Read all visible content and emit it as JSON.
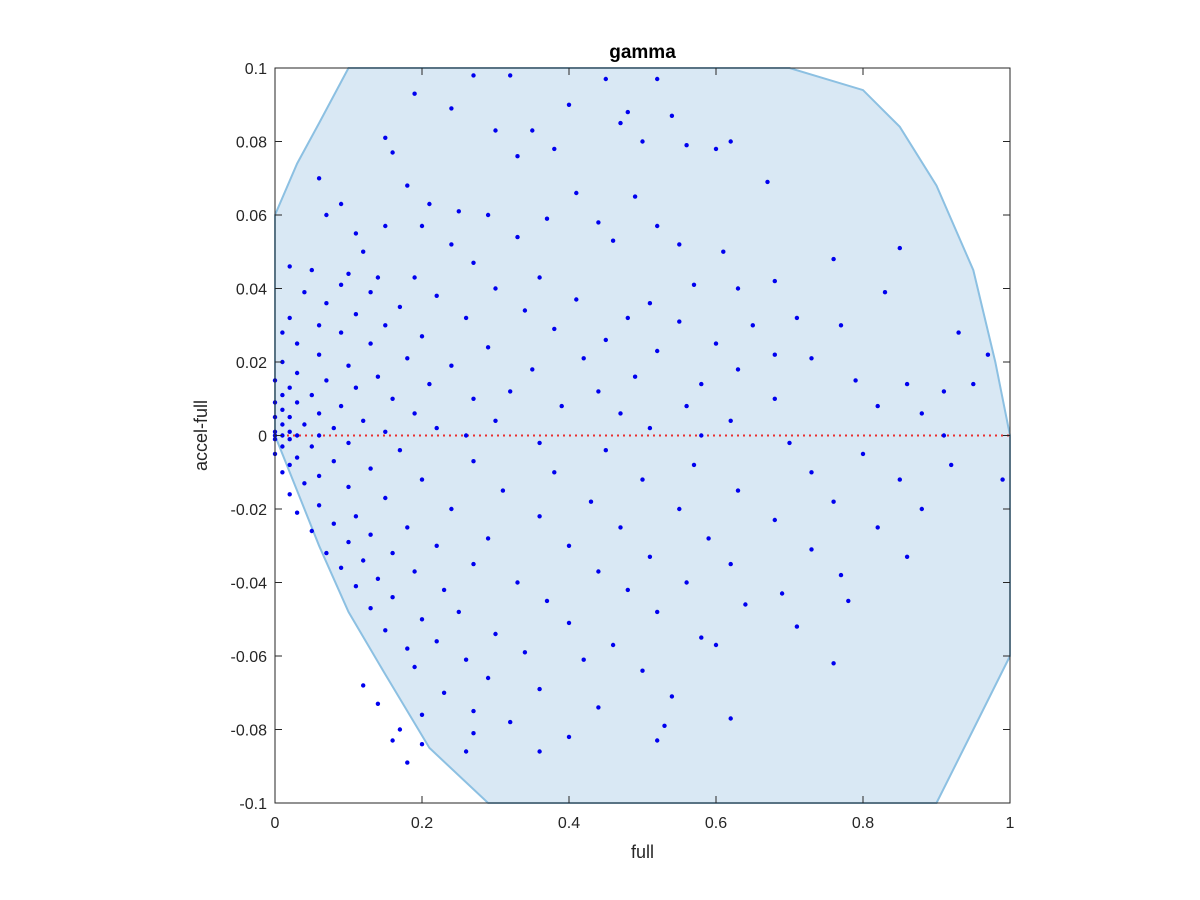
{
  "chart_data": {
    "type": "scatter",
    "title": "gamma",
    "xlabel": "full",
    "ylabel": "accel-full",
    "xlim": [
      0,
      1
    ],
    "ylim": [
      -0.1,
      0.1
    ],
    "x_ticks": [
      0,
      0.2,
      0.4,
      0.6,
      0.8,
      1
    ],
    "x_tick_labels": [
      "0",
      "0.2",
      "0.4",
      "0.6",
      "0.8",
      "1"
    ],
    "y_ticks": [
      -0.1,
      -0.08,
      -0.06,
      -0.04,
      -0.02,
      0,
      0.02,
      0.04,
      0.06,
      0.08,
      0.1
    ],
    "y_tick_labels": [
      "-0.1",
      "-0.08",
      "-0.06",
      "-0.04",
      "-0.02",
      "0",
      "0.02",
      "0.04",
      "0.06",
      "0.08",
      "0.1"
    ],
    "grid": false,
    "colors": {
      "points": "#0000ee",
      "region_fill": "#d9e8f4",
      "region_edge": "#8cc0e2",
      "zero_line": "#e83030",
      "axes": "#262626"
    },
    "zero_line": {
      "y": 0,
      "style": "dotted"
    },
    "region_boundary": [
      {
        "x": 0.0,
        "y": 0.06
      },
      {
        "x": 0.03,
        "y": 0.074
      },
      {
        "x": 0.06,
        "y": 0.085
      },
      {
        "x": 0.1,
        "y": 0.1
      },
      {
        "x": 0.7,
        "y": 0.1
      },
      {
        "x": 0.8,
        "y": 0.094
      },
      {
        "x": 0.85,
        "y": 0.084
      },
      {
        "x": 0.9,
        "y": 0.068
      },
      {
        "x": 0.95,
        "y": 0.045
      },
      {
        "x": 0.98,
        "y": 0.02
      },
      {
        "x": 1.0,
        "y": 0.0
      },
      {
        "x": 1.0,
        "y": -0.06
      },
      {
        "x": 0.95,
        "y": -0.08
      },
      {
        "x": 0.9,
        "y": -0.1
      },
      {
        "x": 0.29,
        "y": -0.1
      },
      {
        "x": 0.21,
        "y": -0.085
      },
      {
        "x": 0.15,
        "y": -0.065
      },
      {
        "x": 0.1,
        "y": -0.048
      },
      {
        "x": 0.06,
        "y": -0.03
      },
      {
        "x": 0.03,
        "y": -0.015
      },
      {
        "x": 0.0,
        "y": 0.0
      }
    ],
    "series": [
      {
        "points": [
          [
            0.27,
            0.098
          ],
          [
            0.32,
            0.098
          ],
          [
            0.45,
            0.097
          ],
          [
            0.52,
            0.097
          ],
          [
            0.19,
            0.093
          ],
          [
            0.24,
            0.089
          ],
          [
            0.4,
            0.09
          ],
          [
            0.48,
            0.088
          ],
          [
            0.54,
            0.087
          ],
          [
            0.3,
            0.083
          ],
          [
            0.35,
            0.083
          ],
          [
            0.38,
            0.078
          ],
          [
            0.15,
            0.081
          ],
          [
            0.16,
            0.077
          ],
          [
            0.33,
            0.076
          ],
          [
            0.47,
            0.085
          ],
          [
            0.5,
            0.08
          ],
          [
            0.56,
            0.079
          ],
          [
            0.6,
            0.078
          ],
          [
            0.62,
            0.08
          ],
          [
            0.06,
            0.07
          ],
          [
            0.67,
            0.069
          ],
          [
            0.18,
            0.068
          ],
          [
            0.41,
            0.066
          ],
          [
            0.49,
            0.065
          ],
          [
            0.21,
            0.063
          ],
          [
            0.09,
            0.063
          ],
          [
            0.25,
            0.061
          ],
          [
            0.29,
            0.06
          ],
          [
            0.37,
            0.059
          ],
          [
            0.07,
            0.06
          ],
          [
            0.44,
            0.058
          ],
          [
            0.15,
            0.057
          ],
          [
            0.2,
            0.057
          ],
          [
            0.52,
            0.057
          ],
          [
            0.11,
            0.055
          ],
          [
            0.33,
            0.054
          ],
          [
            0.46,
            0.053
          ],
          [
            0.55,
            0.052
          ],
          [
            0.24,
            0.052
          ],
          [
            0.61,
            0.05
          ],
          [
            0.85,
            0.051
          ],
          [
            0.12,
            0.05
          ],
          [
            0.76,
            0.048
          ],
          [
            0.27,
            0.047
          ],
          [
            0.02,
            0.046
          ],
          [
            0.05,
            0.045
          ],
          [
            0.1,
            0.044
          ],
          [
            0.14,
            0.043
          ],
          [
            0.19,
            0.043
          ],
          [
            0.36,
            0.043
          ],
          [
            0.57,
            0.041
          ],
          [
            0.68,
            0.042
          ],
          [
            0.09,
            0.041
          ],
          [
            0.3,
            0.04
          ],
          [
            0.63,
            0.04
          ],
          [
            0.83,
            0.039
          ],
          [
            0.04,
            0.039
          ],
          [
            0.13,
            0.039
          ],
          [
            0.22,
            0.038
          ],
          [
            0.41,
            0.037
          ],
          [
            0.51,
            0.036
          ],
          [
            0.07,
            0.036
          ],
          [
            0.17,
            0.035
          ],
          [
            0.34,
            0.034
          ],
          [
            0.48,
            0.032
          ],
          [
            0.71,
            0.032
          ],
          [
            0.02,
            0.032
          ],
          [
            0.11,
            0.033
          ],
          [
            0.26,
            0.032
          ],
          [
            0.55,
            0.031
          ],
          [
            0.65,
            0.03
          ],
          [
            0.77,
            0.03
          ],
          [
            0.06,
            0.03
          ],
          [
            0.15,
            0.03
          ],
          [
            0.38,
            0.029
          ],
          [
            0.93,
            0.028
          ],
          [
            0.01,
            0.028
          ],
          [
            0.09,
            0.028
          ],
          [
            0.2,
            0.027
          ],
          [
            0.45,
            0.026
          ],
          [
            0.6,
            0.025
          ],
          [
            0.03,
            0.025
          ],
          [
            0.13,
            0.025
          ],
          [
            0.29,
            0.024
          ],
          [
            0.52,
            0.023
          ],
          [
            0.68,
            0.022
          ],
          [
            0.97,
            0.022
          ],
          [
            0.06,
            0.022
          ],
          [
            0.18,
            0.021
          ],
          [
            0.42,
            0.021
          ],
          [
            0.73,
            0.021
          ],
          [
            0.01,
            0.02
          ],
          [
            0.1,
            0.019
          ],
          [
            0.24,
            0.019
          ],
          [
            0.35,
            0.018
          ],
          [
            0.63,
            0.018
          ],
          [
            0.03,
            0.017
          ],
          [
            0.14,
            0.016
          ],
          [
            0.49,
            0.016
          ],
          [
            0.79,
            0.015
          ],
          [
            0.0,
            0.015
          ],
          [
            0.07,
            0.015
          ],
          [
            0.21,
            0.014
          ],
          [
            0.58,
            0.014
          ],
          [
            0.86,
            0.014
          ],
          [
            0.95,
            0.014
          ],
          [
            0.02,
            0.013
          ],
          [
            0.11,
            0.013
          ],
          [
            0.32,
            0.012
          ],
          [
            0.44,
            0.012
          ],
          [
            0.91,
            0.012
          ],
          [
            0.01,
            0.011
          ],
          [
            0.05,
            0.011
          ],
          [
            0.16,
            0.01
          ],
          [
            0.27,
            0.01
          ],
          [
            0.68,
            0.01
          ],
          [
            0.0,
            0.009
          ],
          [
            0.03,
            0.009
          ],
          [
            0.09,
            0.008
          ],
          [
            0.39,
            0.008
          ],
          [
            0.56,
            0.008
          ],
          [
            0.82,
            0.008
          ],
          [
            0.01,
            0.007
          ],
          [
            0.06,
            0.006
          ],
          [
            0.19,
            0.006
          ],
          [
            0.47,
            0.006
          ],
          [
            0.88,
            0.006
          ],
          [
            0.0,
            0.005
          ],
          [
            0.02,
            0.005
          ],
          [
            0.12,
            0.004
          ],
          [
            0.3,
            0.004
          ],
          [
            0.62,
            0.004
          ],
          [
            0.01,
            0.003
          ],
          [
            0.04,
            0.003
          ],
          [
            0.08,
            0.002
          ],
          [
            0.22,
            0.002
          ],
          [
            0.51,
            0.002
          ],
          [
            0.0,
            0.001
          ],
          [
            0.02,
            0.001
          ],
          [
            0.15,
            0.001
          ],
          [
            0.0,
            0.0
          ],
          [
            0.01,
            0.0
          ],
          [
            0.03,
            0.0
          ],
          [
            0.06,
            0.0
          ],
          [
            0.26,
            0.0
          ],
          [
            0.58,
            0.0
          ],
          [
            0.91,
            0.0
          ],
          [
            0.0,
            -0.001
          ],
          [
            0.02,
            -0.001
          ],
          [
            0.1,
            -0.002
          ],
          [
            0.36,
            -0.002
          ],
          [
            0.7,
            -0.002
          ],
          [
            0.01,
            -0.003
          ],
          [
            0.05,
            -0.003
          ],
          [
            0.17,
            -0.004
          ],
          [
            0.45,
            -0.004
          ],
          [
            0.8,
            -0.005
          ],
          [
            0.0,
            -0.005
          ],
          [
            0.03,
            -0.006
          ],
          [
            0.08,
            -0.007
          ],
          [
            0.27,
            -0.007
          ],
          [
            0.57,
            -0.008
          ],
          [
            0.92,
            -0.008
          ],
          [
            0.02,
            -0.008
          ],
          [
            0.13,
            -0.009
          ],
          [
            0.38,
            -0.01
          ],
          [
            0.73,
            -0.01
          ],
          [
            0.01,
            -0.01
          ],
          [
            0.06,
            -0.011
          ],
          [
            0.2,
            -0.012
          ],
          [
            0.5,
            -0.012
          ],
          [
            0.85,
            -0.012
          ],
          [
            0.04,
            -0.013
          ],
          [
            0.1,
            -0.014
          ],
          [
            0.31,
            -0.015
          ],
          [
            0.63,
            -0.015
          ],
          [
            0.99,
            -0.012
          ],
          [
            0.02,
            -0.016
          ],
          [
            0.15,
            -0.017
          ],
          [
            0.43,
            -0.018
          ],
          [
            0.76,
            -0.018
          ],
          [
            0.06,
            -0.019
          ],
          [
            0.24,
            -0.02
          ],
          [
            0.55,
            -0.02
          ],
          [
            0.88,
            -0.02
          ],
          [
            0.03,
            -0.021
          ],
          [
            0.11,
            -0.022
          ],
          [
            0.36,
            -0.022
          ],
          [
            0.68,
            -0.023
          ],
          [
            0.08,
            -0.024
          ],
          [
            0.18,
            -0.025
          ],
          [
            0.47,
            -0.025
          ],
          [
            0.82,
            -0.025
          ],
          [
            0.05,
            -0.026
          ],
          [
            0.13,
            -0.027
          ],
          [
            0.29,
            -0.028
          ],
          [
            0.59,
            -0.028
          ],
          [
            0.1,
            -0.029
          ],
          [
            0.22,
            -0.03
          ],
          [
            0.4,
            -0.03
          ],
          [
            0.73,
            -0.031
          ],
          [
            0.07,
            -0.032
          ],
          [
            0.16,
            -0.032
          ],
          [
            0.51,
            -0.033
          ],
          [
            0.86,
            -0.033
          ],
          [
            0.12,
            -0.034
          ],
          [
            0.27,
            -0.035
          ],
          [
            0.62,
            -0.035
          ],
          [
            0.09,
            -0.036
          ],
          [
            0.19,
            -0.037
          ],
          [
            0.44,
            -0.037
          ],
          [
            0.77,
            -0.038
          ],
          [
            0.14,
            -0.039
          ],
          [
            0.33,
            -0.04
          ],
          [
            0.56,
            -0.04
          ],
          [
            0.11,
            -0.041
          ],
          [
            0.23,
            -0.042
          ],
          [
            0.48,
            -0.042
          ],
          [
            0.69,
            -0.043
          ],
          [
            0.16,
            -0.044
          ],
          [
            0.37,
            -0.045
          ],
          [
            0.64,
            -0.046
          ],
          [
            0.78,
            -0.045
          ],
          [
            0.13,
            -0.047
          ],
          [
            0.25,
            -0.048
          ],
          [
            0.52,
            -0.048
          ],
          [
            0.2,
            -0.05
          ],
          [
            0.4,
            -0.051
          ],
          [
            0.71,
            -0.052
          ],
          [
            0.15,
            -0.053
          ],
          [
            0.3,
            -0.054
          ],
          [
            0.58,
            -0.055
          ],
          [
            0.22,
            -0.056
          ],
          [
            0.46,
            -0.057
          ],
          [
            0.18,
            -0.058
          ],
          [
            0.34,
            -0.059
          ],
          [
            0.6,
            -0.057
          ],
          [
            0.26,
            -0.061
          ],
          [
            0.42,
            -0.061
          ],
          [
            0.76,
            -0.062
          ],
          [
            0.19,
            -0.063
          ],
          [
            0.5,
            -0.064
          ],
          [
            0.29,
            -0.066
          ],
          [
            0.12,
            -0.068
          ],
          [
            0.36,
            -0.069
          ],
          [
            0.23,
            -0.07
          ],
          [
            0.54,
            -0.071
          ],
          [
            0.14,
            -0.073
          ],
          [
            0.44,
            -0.074
          ],
          [
            0.27,
            -0.075
          ],
          [
            0.2,
            -0.076
          ],
          [
            0.62,
            -0.077
          ],
          [
            0.32,
            -0.078
          ],
          [
            0.17,
            -0.08
          ],
          [
            0.53,
            -0.079
          ],
          [
            0.27,
            -0.081
          ],
          [
            0.4,
            -0.082
          ],
          [
            0.16,
            -0.083
          ],
          [
            0.2,
            -0.084
          ],
          [
            0.52,
            -0.083
          ],
          [
            0.26,
            -0.086
          ],
          [
            0.36,
            -0.086
          ],
          [
            0.18,
            -0.089
          ]
        ]
      }
    ]
  }
}
